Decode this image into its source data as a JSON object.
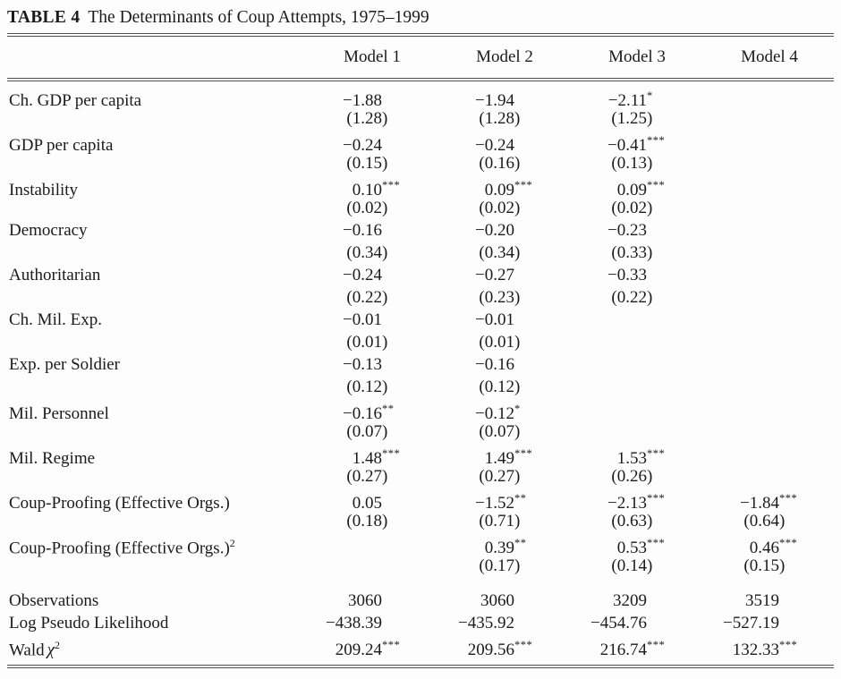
{
  "title": {
    "tag": "TABLE 4",
    "text": "The Determinants of Coup Attempts, 1975–1999"
  },
  "columns": [
    "Model 1",
    "Model 2",
    "Model 3",
    "Model 4"
  ],
  "rows": [
    {
      "label": "Ch. GDP per capita",
      "cells": [
        {
          "coef": "−1.88",
          "stars": "",
          "se": "1.28"
        },
        {
          "coef": "−1.94",
          "stars": "",
          "se": "1.28"
        },
        {
          "coef": "−2.11",
          "stars": "*",
          "se": "1.25"
        },
        null
      ]
    },
    {
      "label": "GDP per capita",
      "cells": [
        {
          "coef": "−0.24",
          "stars": "",
          "se": "0.15"
        },
        {
          "coef": "−0.24",
          "stars": "",
          "se": "0.16"
        },
        {
          "coef": "−0.41",
          "stars": "***",
          "se": "0.13"
        },
        null
      ]
    },
    {
      "label": "Instability",
      "cells": [
        {
          "coef": "0.10",
          "stars": "***",
          "se": "0.02"
        },
        {
          "coef": "0.09",
          "stars": "***",
          "se": "0.02"
        },
        {
          "coef": "0.09",
          "stars": "***",
          "se": "0.02"
        },
        null
      ]
    },
    {
      "label": "Democracy",
      "cells": [
        {
          "coef": "−0.16",
          "stars": "",
          "se": "0.34"
        },
        {
          "coef": "−0.20",
          "stars": "",
          "se": "0.34"
        },
        {
          "coef": "−0.23",
          "stars": "",
          "se": "0.33"
        },
        null
      ]
    },
    {
      "label": "Authoritarian",
      "cells": [
        {
          "coef": "−0.24",
          "stars": "",
          "se": "0.22"
        },
        {
          "coef": "−0.27",
          "stars": "",
          "se": "0.23"
        },
        {
          "coef": "−0.33",
          "stars": "",
          "se": "0.22"
        },
        null
      ]
    },
    {
      "label": "Ch. Mil. Exp.",
      "cells": [
        {
          "coef": "−0.01",
          "stars": "",
          "se": "0.01"
        },
        {
          "coef": "−0.01",
          "stars": "",
          "se": "0.01"
        },
        null,
        null
      ]
    },
    {
      "label": "Exp. per Soldier",
      "cells": [
        {
          "coef": "−0.13",
          "stars": "",
          "se": "0.12"
        },
        {
          "coef": "−0.16",
          "stars": "",
          "se": "0.12"
        },
        null,
        null
      ]
    },
    {
      "label": "Mil. Personnel",
      "cells": [
        {
          "coef": "−0.16",
          "stars": "**",
          "se": "0.07"
        },
        {
          "coef": "−0.12",
          "stars": "*",
          "se": "0.07"
        },
        null,
        null
      ]
    },
    {
      "label": "Mil. Regime",
      "cells": [
        {
          "coef": "1.48",
          "stars": "***",
          "se": "0.27"
        },
        {
          "coef": "1.49",
          "stars": "***",
          "se": "0.27"
        },
        {
          "coef": "1.53",
          "stars": "***",
          "se": "0.26"
        },
        null
      ]
    },
    {
      "label": "Coup-Proofing (Effective Orgs.)",
      "cells": [
        {
          "coef": "0.05",
          "stars": "",
          "se": "0.18"
        },
        {
          "coef": "−1.52",
          "stars": "**",
          "se": "0.71"
        },
        {
          "coef": "−2.13",
          "stars": "***",
          "se": "0.63"
        },
        {
          "coef": "−1.84",
          "stars": "***",
          "se": "0.64"
        }
      ]
    },
    {
      "label": "Coup-Proofing (Effective Orgs.)",
      "sup": "2",
      "cells": [
        null,
        {
          "coef": "0.39",
          "stars": "**",
          "se": "0.17"
        },
        {
          "coef": "0.53",
          "stars": "***",
          "se": "0.14"
        },
        {
          "coef": "0.46",
          "stars": "***",
          "se": "0.15"
        }
      ]
    }
  ],
  "stats": [
    {
      "label": "Observations",
      "values": [
        {
          "v": "3060",
          "stars": ""
        },
        {
          "v": "3060",
          "stars": ""
        },
        {
          "v": "3209",
          "stars": ""
        },
        {
          "v": "3519",
          "stars": ""
        }
      ]
    },
    {
      "label": "Log Pseudo Likelihood",
      "values": [
        {
          "v": "−438.39",
          "stars": ""
        },
        {
          "v": "−435.92",
          "stars": ""
        },
        {
          "v": "−454.76",
          "stars": ""
        },
        {
          "v": "−527.19",
          "stars": ""
        }
      ]
    },
    {
      "label": "Wald",
      "sym": "χ",
      "sup": "2",
      "values": [
        {
          "v": "209.24",
          "stars": "***"
        },
        {
          "v": "209.56",
          "stars": "***"
        },
        {
          "v": "216.74",
          "stars": "***"
        },
        {
          "v": "132.33",
          "stars": "***"
        }
      ]
    }
  ]
}
